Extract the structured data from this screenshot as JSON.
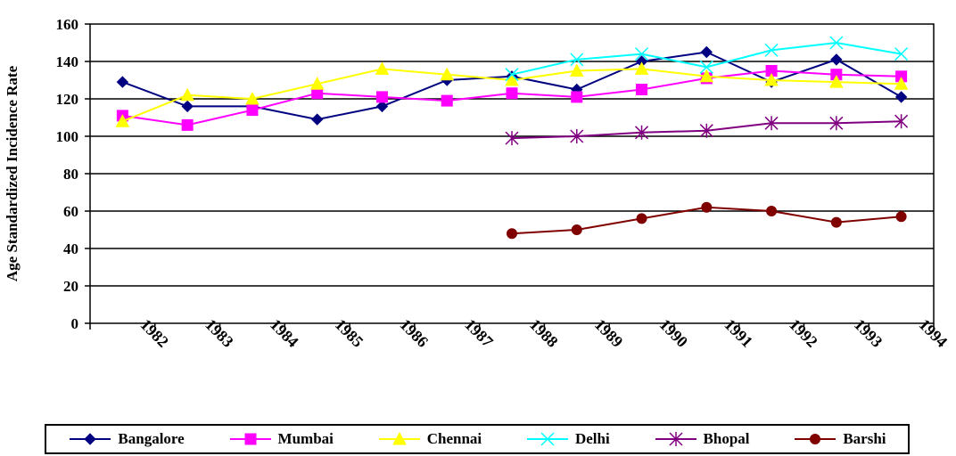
{
  "chart_data": {
    "type": "line",
    "ylabel": "Age Standardized Incidence Rate",
    "xlabel": "",
    "ylim": [
      0,
      160
    ],
    "yticks": [
      0,
      20,
      40,
      60,
      80,
      100,
      120,
      140,
      160
    ],
    "x": [
      "1982",
      "1983",
      "1984",
      "1985",
      "1986",
      "1987",
      "1988",
      "1989",
      "1990",
      "1991",
      "1992",
      "1993",
      "1994"
    ],
    "grid": "horizontal",
    "legend_position": "bottom",
    "series": [
      {
        "name": "Bangalore",
        "color": "#000080",
        "marker": "diamond",
        "values": [
          129,
          116,
          116,
          109,
          116,
          130,
          132,
          125,
          140,
          145,
          129,
          141,
          121
        ]
      },
      {
        "name": "Mumbai",
        "color": "#FF00FF",
        "marker": "square",
        "values": [
          111,
          106,
          114,
          123,
          121,
          119,
          123,
          121,
          125,
          131,
          135,
          133,
          132
        ]
      },
      {
        "name": "Chennai",
        "color": "#FFFF00",
        "marker": "triangle",
        "values": [
          108,
          122,
          120,
          128,
          136,
          133,
          130,
          135,
          136,
          132,
          130,
          129,
          128
        ]
      },
      {
        "name": "Delhi",
        "color": "#00FFFF",
        "marker": "x",
        "values": [
          null,
          null,
          null,
          null,
          null,
          null,
          133,
          141,
          144,
          137,
          146,
          150,
          144
        ]
      },
      {
        "name": "Bhopal",
        "color": "#800080",
        "marker": "star",
        "values": [
          null,
          null,
          null,
          null,
          null,
          null,
          99,
          100,
          102,
          103,
          107,
          107,
          108
        ]
      },
      {
        "name": "Barshi",
        "color": "#800000",
        "marker": "circle",
        "values": [
          null,
          null,
          null,
          null,
          null,
          null,
          48,
          50,
          56,
          62,
          60,
          54,
          57
        ]
      }
    ]
  }
}
